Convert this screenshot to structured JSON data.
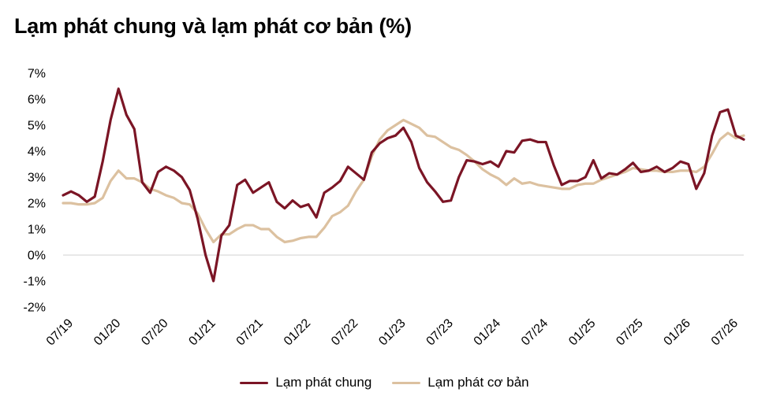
{
  "title": "Lạm phát chung và lạm phát cơ bản (%)",
  "colors": {
    "headline": "#7b1525",
    "core": "#dcc1a0",
    "axis": "#d0d0d0"
  },
  "chart_data": {
    "type": "line",
    "title": "Lạm phát chung và lạm phát cơ bản (%)",
    "xlabel": "",
    "ylabel": "",
    "ylim": [
      -2,
      7
    ],
    "yticks": [
      -2,
      -1,
      0,
      1,
      2,
      3,
      4,
      5,
      6,
      7
    ],
    "ytick_labels": [
      "-2%",
      "-1%",
      "0%",
      "1%",
      "2%",
      "3%",
      "4%",
      "5%",
      "6%",
      "7%"
    ],
    "x_start": "07/2019",
    "x_end": "07/2026",
    "xtick_labels": [
      "07/19",
      "01/20",
      "07/20",
      "01/21",
      "07/21",
      "01/22",
      "07/22",
      "01/23",
      "07/23",
      "01/24",
      "07/24",
      "01/25",
      "07/25",
      "01/26",
      "07/26"
    ],
    "grid": false,
    "legend_position": "bottom",
    "series": [
      {
        "name": "Lạm phát chung",
        "color": "#7b1525",
        "values": [
          2.3,
          2.45,
          2.3,
          2.05,
          2.25,
          3.6,
          5.2,
          6.4,
          5.4,
          4.85,
          2.8,
          2.4,
          3.2,
          3.4,
          3.25,
          3.0,
          2.5,
          1.4,
          0.0,
          -1.0,
          0.75,
          1.15,
          2.7,
          2.9,
          2.4,
          2.6,
          2.8,
          2.05,
          1.8,
          2.1,
          1.85,
          1.95,
          1.45,
          2.4,
          2.6,
          2.85,
          3.4,
          3.15,
          2.9,
          3.95,
          4.3,
          4.5,
          4.6,
          4.9,
          4.35,
          3.35,
          2.8,
          2.45,
          2.05,
          2.1,
          3.0,
          3.65,
          3.6,
          3.5,
          3.6,
          3.4,
          4.0,
          3.95,
          4.4,
          4.45,
          4.35,
          4.35,
          3.45,
          2.7,
          2.85,
          2.85,
          3.0,
          3.65,
          2.95,
          3.15,
          3.1,
          3.3,
          3.55,
          3.2,
          3.25,
          3.4,
          3.2,
          3.35,
          3.6,
          3.5,
          2.55,
          3.15,
          4.6,
          5.5,
          5.6,
          4.6,
          4.45
        ]
      },
      {
        "name": "Lạm phát cơ bản",
        "color": "#dcc1a0",
        "values": [
          2.0,
          2.0,
          1.95,
          1.95,
          2.0,
          2.2,
          2.85,
          3.25,
          2.95,
          2.95,
          2.8,
          2.55,
          2.45,
          2.3,
          2.2,
          2.0,
          1.95,
          1.6,
          1.0,
          0.5,
          0.8,
          0.8,
          1.0,
          1.15,
          1.15,
          1.0,
          1.0,
          0.7,
          0.5,
          0.55,
          0.65,
          0.7,
          0.7,
          1.05,
          1.5,
          1.65,
          1.9,
          2.45,
          2.9,
          3.8,
          4.45,
          4.8,
          5.0,
          5.2,
          5.05,
          4.9,
          4.6,
          4.55,
          4.35,
          4.15,
          4.05,
          3.85,
          3.6,
          3.3,
          3.1,
          2.95,
          2.7,
          2.95,
          2.75,
          2.8,
          2.7,
          2.65,
          2.6,
          2.55,
          2.55,
          2.7,
          2.75,
          2.75,
          2.9,
          3.0,
          3.1,
          3.2,
          3.35,
          3.3,
          3.25,
          3.25,
          3.2,
          3.2,
          3.25,
          3.25,
          3.2,
          3.4,
          3.9,
          4.45,
          4.7,
          4.5,
          4.6
        ]
      }
    ]
  }
}
